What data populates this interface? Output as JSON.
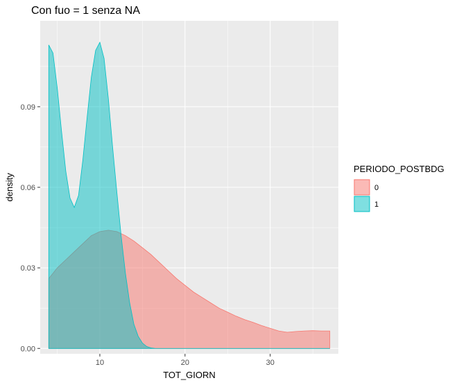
{
  "chart_data": {
    "type": "area",
    "title": "Con fuo = 1 senza NA",
    "xlabel": "TOT_GIORN",
    "ylabel": "density",
    "xlim": [
      3,
      38
    ],
    "ylim": [
      -0.002,
      0.122
    ],
    "x_ticks": [
      10,
      20,
      30
    ],
    "y_ticks": [
      0.0,
      0.03,
      0.06,
      0.09
    ],
    "y_tick_labels": [
      "0.00",
      "0.03",
      "0.06",
      "0.09"
    ],
    "grid": true,
    "legend": {
      "title": "PERIODO_POSTBDG",
      "placement": "right"
    },
    "series": [
      {
        "name": "0",
        "fill": "#F8766D",
        "stroke": "#F8766D",
        "points": [
          [
            4,
            0.026
          ],
          [
            5,
            0.03
          ],
          [
            6,
            0.033
          ],
          [
            7,
            0.036
          ],
          [
            8,
            0.039
          ],
          [
            9,
            0.042
          ],
          [
            10,
            0.0435
          ],
          [
            11,
            0.044
          ],
          [
            12,
            0.0435
          ],
          [
            13,
            0.042
          ],
          [
            14,
            0.04
          ],
          [
            15,
            0.0375
          ],
          [
            16,
            0.035
          ],
          [
            17,
            0.032
          ],
          [
            18,
            0.029
          ],
          [
            19,
            0.026
          ],
          [
            20,
            0.0235
          ],
          [
            21,
            0.021
          ],
          [
            22,
            0.019
          ],
          [
            23,
            0.017
          ],
          [
            24,
            0.015
          ],
          [
            25,
            0.0135
          ],
          [
            26,
            0.012
          ],
          [
            27,
            0.0107
          ],
          [
            28,
            0.0097
          ],
          [
            29,
            0.0085
          ],
          [
            30,
            0.0075
          ],
          [
            31,
            0.0065
          ],
          [
            32,
            0.006
          ],
          [
            33,
            0.0063
          ],
          [
            34,
            0.0065
          ],
          [
            35,
            0.0066
          ],
          [
            36,
            0.0065
          ],
          [
            37,
            0.0065
          ]
        ]
      },
      {
        "name": "1",
        "fill": "#00BFC4",
        "stroke": "#00BFC4",
        "points": [
          [
            4,
            0.113
          ],
          [
            4.5,
            0.11
          ],
          [
            5,
            0.097
          ],
          [
            5.5,
            0.081
          ],
          [
            6,
            0.066
          ],
          [
            6.5,
            0.056
          ],
          [
            7,
            0.0525
          ],
          [
            7.5,
            0.057
          ],
          [
            8,
            0.07
          ],
          [
            8.5,
            0.086
          ],
          [
            9,
            0.101
          ],
          [
            9.5,
            0.111
          ],
          [
            10,
            0.114
          ],
          [
            10.5,
            0.108
          ],
          [
            11,
            0.093
          ],
          [
            11.5,
            0.075
          ],
          [
            12,
            0.058
          ],
          [
            12.5,
            0.042
          ],
          [
            13,
            0.028
          ],
          [
            13.5,
            0.017
          ],
          [
            14,
            0.009
          ],
          [
            14.5,
            0.0045
          ],
          [
            15,
            0.002
          ],
          [
            15.5,
            0.0007
          ],
          [
            16,
            0.0002
          ],
          [
            16.5,
            0.0
          ],
          [
            37,
            0.0
          ]
        ]
      }
    ]
  }
}
